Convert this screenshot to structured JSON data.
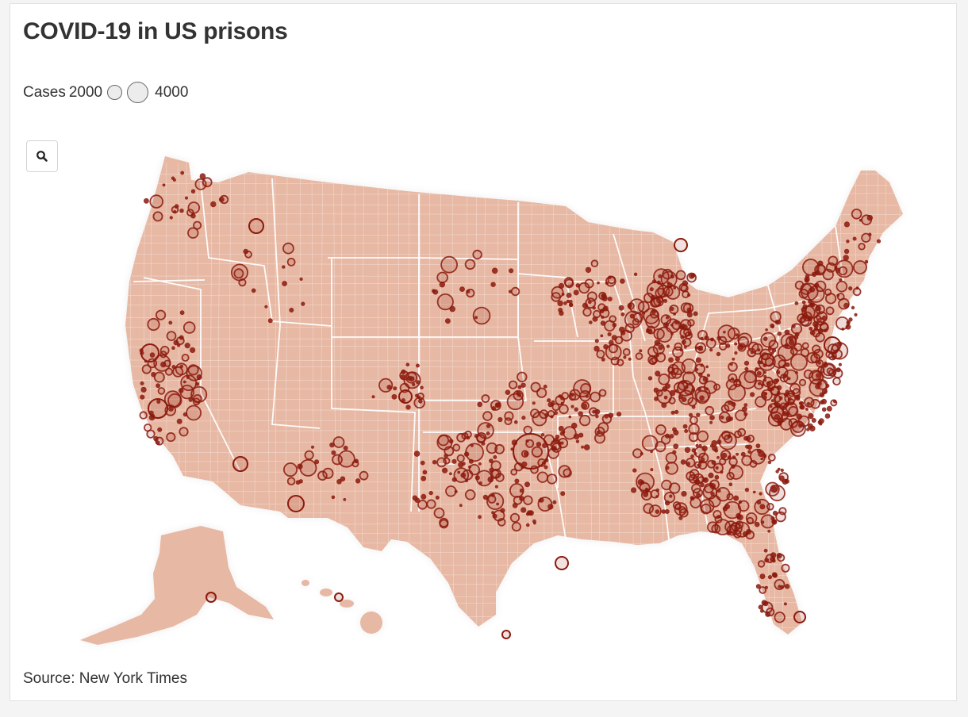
{
  "title": "COVID-19 in US prisons",
  "legend": {
    "label": "Cases",
    "small_value": "2000",
    "large_value": "4000"
  },
  "source": "Source: New York Times",
  "toolbar": {
    "zoom_icon": "search-icon"
  },
  "colors": {
    "land": "#e7b8a3",
    "border": "#ffffff",
    "bubble_stroke": "#8b1a0e",
    "bubble_fill": "rgba(150,40,25,0.45)",
    "legend_fill": "#ececec",
    "legend_stroke": "#666666"
  }
}
